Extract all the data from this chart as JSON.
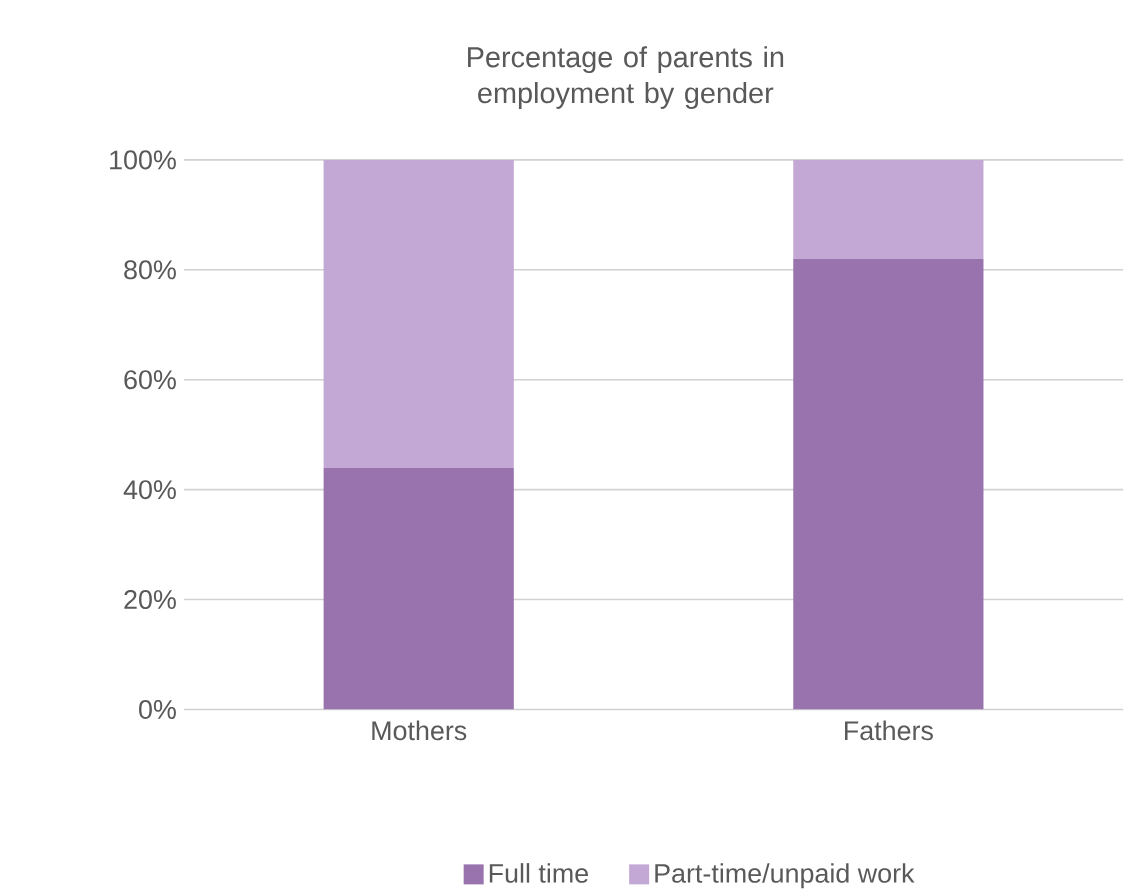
{
  "chart_data": {
    "type": "bar",
    "stacked": true,
    "title": "Percentage of parents in employment by gender",
    "categories": [
      "Mothers",
      "Fathers"
    ],
    "series": [
      {
        "name": "Full time",
        "color": "#9873ae",
        "values": [
          44,
          82
        ]
      },
      {
        "name": "Part-time/unpaid work",
        "color": "#c3a8d5",
        "values": [
          56,
          18
        ]
      }
    ],
    "ylim": [
      0,
      100
    ],
    "yticks": [
      {
        "value": 0,
        "label": "0%"
      },
      {
        "value": 20,
        "label": "20%"
      },
      {
        "value": 40,
        "label": "40%"
      },
      {
        "value": 60,
        "label": "60%"
      },
      {
        "value": 80,
        "label": "80%"
      },
      {
        "value": 100,
        "label": "100%"
      }
    ],
    "grid": "y",
    "legend": "bottom"
  }
}
